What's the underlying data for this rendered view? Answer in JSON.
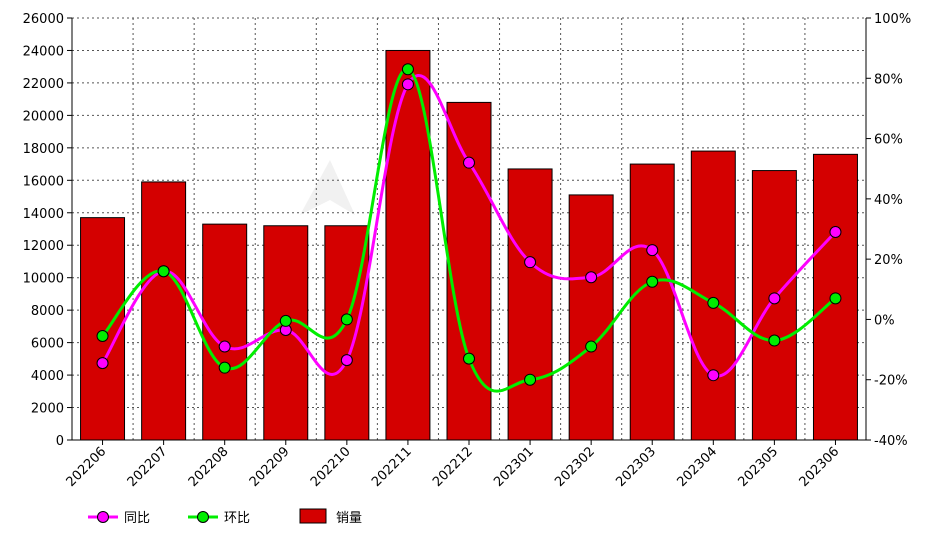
{
  "chart_data": {
    "type": "bar",
    "categories": [
      "202206",
      "202207",
      "202208",
      "202209",
      "202210",
      "202211",
      "202212",
      "202301",
      "202302",
      "202303",
      "202304",
      "202305",
      "202306"
    ],
    "series": [
      {
        "name": "销量",
        "type": "bar",
        "axis": "left",
        "color": "#d40000",
        "values": [
          13700,
          15900,
          13300,
          13200,
          13200,
          24000,
          20800,
          16700,
          15100,
          17000,
          17800,
          16600,
          17600
        ]
      },
      {
        "name": "同比",
        "type": "line",
        "axis": "right",
        "color": "#ff00ff",
        "values": [
          -14.5,
          16,
          -9,
          -3.5,
          -13.5,
          78,
          52,
          19,
          14,
          23,
          -18.5,
          7,
          29
        ]
      },
      {
        "name": "环比",
        "type": "line",
        "axis": "right",
        "color": "#00ee00",
        "values": [
          -5.5,
          16,
          -16,
          -0.5,
          0,
          83,
          -13,
          -20,
          -9,
          12.5,
          5.5,
          -7,
          7
        ]
      }
    ],
    "y_left": {
      "min": 0,
      "max": 26000,
      "step": 2000,
      "tick_labels": [
        "0",
        "2000",
        "4000",
        "6000",
        "8000",
        "10000",
        "12000",
        "14000",
        "16000",
        "18000",
        "20000",
        "22000",
        "24000",
        "26000"
      ]
    },
    "y_right": {
      "min": -40,
      "max": 100,
      "step": 20,
      "tick_labels": [
        "-40%",
        "-20%",
        "0%",
        "20%",
        "40%",
        "60%",
        "80%",
        "100%"
      ]
    },
    "grid": true,
    "legend_position": "bottom-left",
    "legend": [
      {
        "label": "同比",
        "kind": "line-marker",
        "color": "#ff00ff"
      },
      {
        "label": "环比",
        "kind": "line-marker",
        "color": "#00ee00"
      },
      {
        "label": "销量",
        "kind": "bar",
        "color": "#d40000"
      }
    ]
  }
}
